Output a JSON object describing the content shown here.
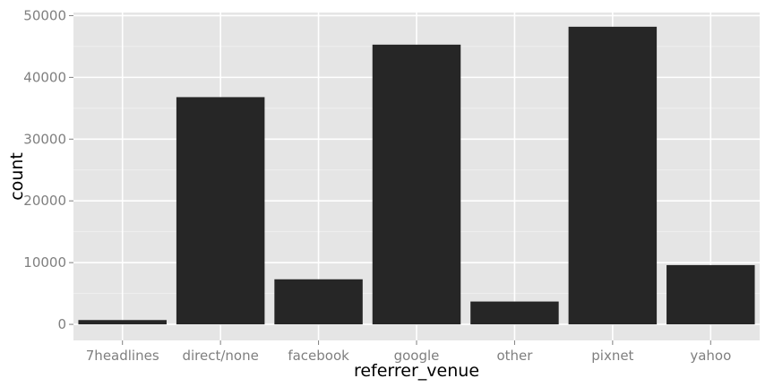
{
  "chart_data": {
    "type": "bar",
    "title": "",
    "xlabel": "referrer_venue",
    "ylabel": "count",
    "categories": [
      "7headlines",
      "direct/none",
      "facebook",
      "google",
      "other",
      "pixnet",
      "yahoo"
    ],
    "values": [
      700,
      36800,
      7300,
      45300,
      3700,
      48200,
      9600
    ],
    "ylim": [
      -2600,
      50500
    ],
    "yticks": [
      0,
      10000,
      20000,
      30000,
      40000,
      50000
    ],
    "ytick_labels": [
      "0",
      "10000",
      "20000",
      "30000",
      "40000",
      "50000"
    ],
    "grid": true,
    "legend": "none",
    "colors": {
      "panel_background": "#e5e5e5",
      "grid_major": "#ffffff",
      "grid_minor": "#f2f2f2",
      "bar_fill": "#262626",
      "tick_label": "#7f7f7f",
      "axis_title": "#000000"
    }
  }
}
